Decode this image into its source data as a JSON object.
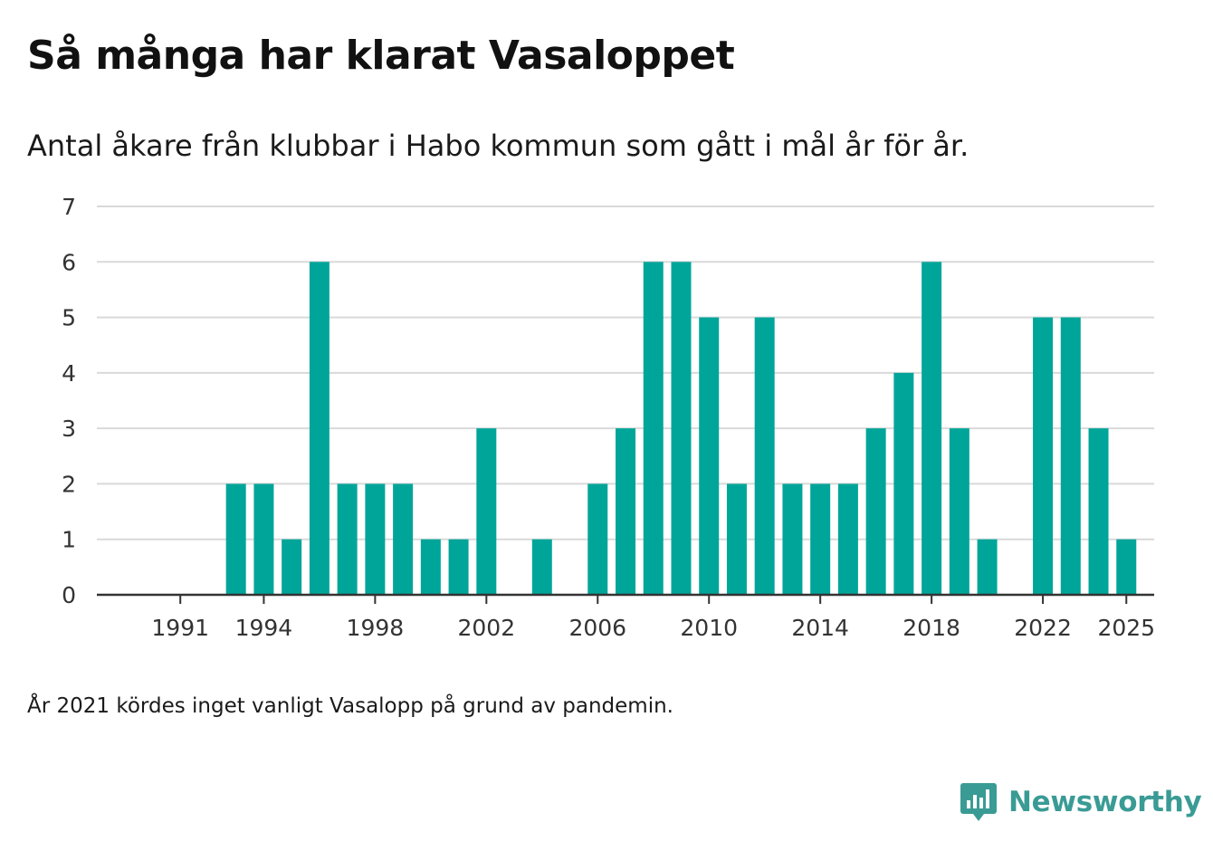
{
  "title": "Så många har klarat Vasaloppet",
  "subtitle": "Antal åkare från klubbar i Habo kommun som gått i mål år för år.",
  "footnote": "År 2021 kördes inget vanligt Vasalopp på grund av pandemin.",
  "brand": {
    "name": "Newsworthy",
    "color": "#3a9b95",
    "icon": "newsworthy-logo-icon"
  },
  "colors": {
    "bar": "#00a59a",
    "grid": "#d9d9d9",
    "axis": "#333333"
  },
  "chart_data": {
    "type": "bar",
    "title": "Så många har klarat Vasaloppet",
    "subtitle": "Antal åkare från klubbar i Habo kommun som gått i mål år för år.",
    "xlabel": "",
    "ylabel": "",
    "ylim": [
      0,
      7
    ],
    "xlim": [
      1988,
      2026
    ],
    "yticks": [
      0,
      1,
      2,
      3,
      4,
      5,
      6,
      7
    ],
    "xticks": [
      1991,
      1994,
      1998,
      2002,
      2006,
      2010,
      2014,
      2018,
      2022,
      2025
    ],
    "grid": true,
    "legend": "none",
    "categories": [
      1993,
      1994,
      1995,
      1996,
      1997,
      1998,
      1999,
      2000,
      2001,
      2002,
      2004,
      2006,
      2007,
      2008,
      2009,
      2010,
      2011,
      2012,
      2013,
      2014,
      2015,
      2016,
      2017,
      2018,
      2019,
      2020,
      2022,
      2023,
      2024,
      2025
    ],
    "values": [
      2,
      2,
      1,
      6,
      2,
      2,
      2,
      1,
      1,
      3,
      1,
      2,
      3,
      6,
      6,
      5,
      2,
      5,
      2,
      2,
      2,
      3,
      4,
      6,
      3,
      1,
      5,
      5,
      3,
      1
    ]
  }
}
